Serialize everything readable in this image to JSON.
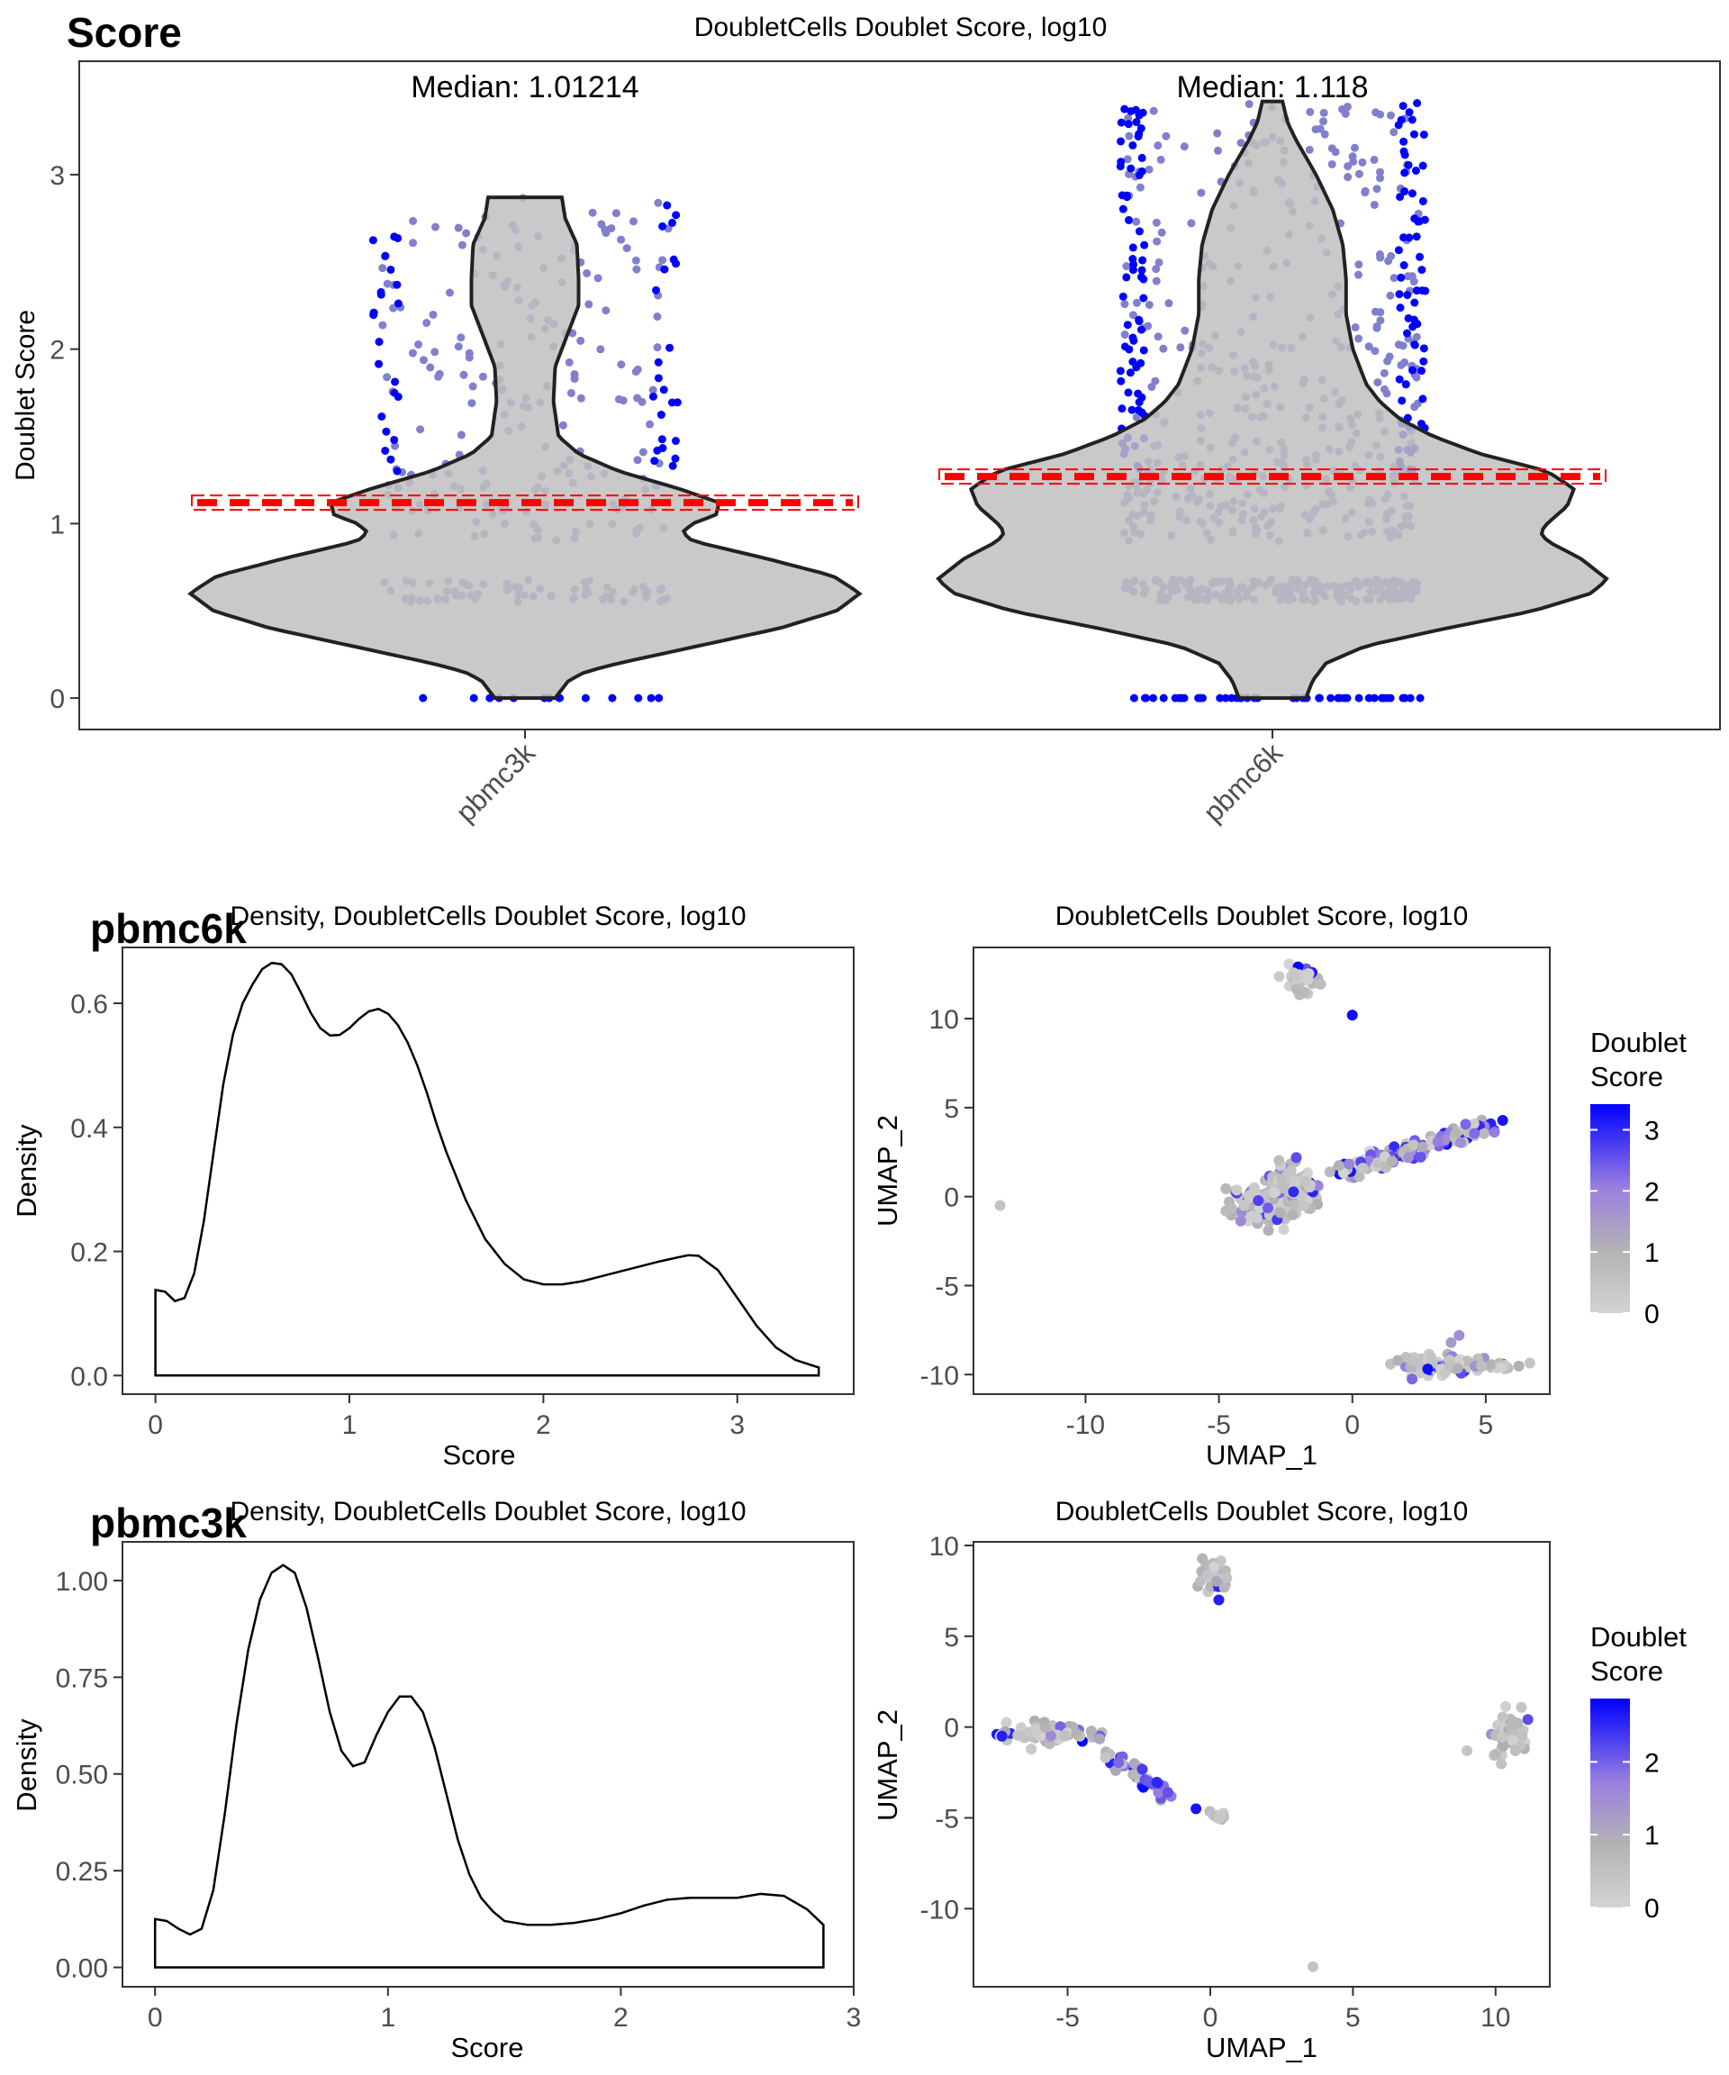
{
  "figure": {
    "colors": {
      "low": "#BEBEBE",
      "high": "#0000FF",
      "jitter": "#8080CC",
      "outlier": "#0000FF",
      "violin_fill": "#C0C0C0",
      "median_line": "#FF0000"
    }
  },
  "chart_data": [
    {
      "id": "violin",
      "type": "violin",
      "tag": "Score",
      "title": "DoubletCells Doublet Score, log10",
      "xlabel": "",
      "ylabel": "Doublet Score",
      "ylim": [
        -0.18,
        3.65
      ],
      "yticks": [
        0,
        1,
        2,
        3
      ],
      "yticklabels": [
        "0",
        "1",
        "2",
        "3"
      ],
      "categories": [
        "pbmc3k",
        "pbmc6k"
      ],
      "medians": [
        1.01214,
        1.118
      ],
      "median_labels": [
        "Median: 1.01214",
        "Median: 1.118"
      ],
      "threshold_lines": [
        1.12,
        1.27
      ],
      "violins": [
        {
          "name": "pbmc3k",
          "profile": [
            [
              0.0,
              0.09
            ],
            [
              0.05,
              0.11
            ],
            [
              0.1,
              0.13
            ],
            [
              0.15,
              0.18
            ],
            [
              0.2,
              0.28
            ],
            [
              0.3,
              0.52
            ],
            [
              0.4,
              0.76
            ],
            [
              0.5,
              0.93
            ],
            [
              0.6,
              1.0
            ],
            [
              0.7,
              0.92
            ],
            [
              0.8,
              0.72
            ],
            [
              0.9,
              0.5
            ],
            [
              0.95,
              0.47
            ],
            [
              1.0,
              0.5
            ],
            [
              1.05,
              0.57
            ],
            [
              1.12,
              0.58
            ],
            [
              1.2,
              0.46
            ],
            [
              1.3,
              0.28
            ],
            [
              1.4,
              0.16
            ],
            [
              1.5,
              0.1
            ],
            [
              1.7,
              0.085
            ],
            [
              1.9,
              0.09
            ],
            [
              2.1,
              0.13
            ],
            [
              2.25,
              0.16
            ],
            [
              2.4,
              0.16
            ],
            [
              2.6,
              0.155
            ],
            [
              2.75,
              0.12
            ],
            [
              2.87,
              0.11
            ]
          ],
          "ymax": 2.87
        },
        {
          "name": "pbmc6k",
          "profile": [
            [
              0.0,
              0.1
            ],
            [
              0.1,
              0.12
            ],
            [
              0.2,
              0.16
            ],
            [
              0.3,
              0.28
            ],
            [
              0.4,
              0.52
            ],
            [
              0.5,
              0.78
            ],
            [
              0.6,
              0.95
            ],
            [
              0.68,
              1.0
            ],
            [
              0.8,
              0.92
            ],
            [
              0.9,
              0.82
            ],
            [
              0.95,
              0.8
            ],
            [
              1.0,
              0.82
            ],
            [
              1.1,
              0.88
            ],
            [
              1.2,
              0.9
            ],
            [
              1.3,
              0.82
            ],
            [
              1.4,
              0.62
            ],
            [
              1.5,
              0.48
            ],
            [
              1.6,
              0.38
            ],
            [
              1.7,
              0.32
            ],
            [
              1.8,
              0.28
            ],
            [
              2.0,
              0.24
            ],
            [
              2.2,
              0.22
            ],
            [
              2.4,
              0.22
            ],
            [
              2.6,
              0.21
            ],
            [
              2.8,
              0.18
            ],
            [
              3.0,
              0.13
            ],
            [
              3.2,
              0.07
            ],
            [
              3.3,
              0.045
            ],
            [
              3.42,
              0.03
            ]
          ],
          "ymax": 3.42
        }
      ]
    },
    {
      "id": "density_pbmc6k",
      "type": "area",
      "tag": "pbmc6k",
      "title": "Density, DoubletCells Doublet Score, log10",
      "xlabel": "Score",
      "ylabel": "Density",
      "xlim": [
        -0.17,
        3.6
      ],
      "ylim": [
        -0.03,
        0.69
      ],
      "xticks": [
        0,
        1,
        2,
        3
      ],
      "xticklabels": [
        "0",
        "1",
        "2",
        "3"
      ],
      "yticks": [
        0,
        0.2,
        0.4,
        0.6
      ],
      "yticklabels": [
        "0.0",
        "0.2",
        "0.4",
        "0.6"
      ],
      "x": [
        0.0,
        0.05,
        0.1,
        0.15,
        0.2,
        0.25,
        0.3,
        0.35,
        0.4,
        0.45,
        0.5,
        0.55,
        0.6,
        0.65,
        0.7,
        0.75,
        0.8,
        0.85,
        0.9,
        0.95,
        1.0,
        1.05,
        1.1,
        1.15,
        1.2,
        1.25,
        1.3,
        1.35,
        1.4,
        1.45,
        1.5,
        1.6,
        1.7,
        1.8,
        1.9,
        2.0,
        2.1,
        2.2,
        2.3,
        2.4,
        2.5,
        2.6,
        2.7,
        2.75,
        2.8,
        2.9,
        3.0,
        3.1,
        3.2,
        3.3,
        3.42
      ],
      "y": [
        0.138,
        0.135,
        0.12,
        0.125,
        0.165,
        0.25,
        0.36,
        0.47,
        0.55,
        0.6,
        0.63,
        0.655,
        0.665,
        0.663,
        0.647,
        0.617,
        0.585,
        0.56,
        0.548,
        0.549,
        0.56,
        0.575,
        0.587,
        0.591,
        0.583,
        0.565,
        0.537,
        0.5,
        0.455,
        0.405,
        0.36,
        0.283,
        0.22,
        0.18,
        0.155,
        0.147,
        0.147,
        0.152,
        0.16,
        0.168,
        0.176,
        0.184,
        0.191,
        0.194,
        0.193,
        0.17,
        0.125,
        0.08,
        0.045,
        0.025,
        0.013
      ]
    },
    {
      "id": "umap_pbmc6k",
      "type": "scatter",
      "title": "DoubletCells Doublet Score, log10",
      "xlabel": "UMAP_1",
      "ylabel": "UMAP_2",
      "xlim": [
        -14.2,
        7.4
      ],
      "ylim": [
        -11.1,
        14.0
      ],
      "xticks": [
        -10,
        -5,
        0,
        5
      ],
      "xticklabels": [
        "-10",
        "-5",
        "0",
        "5"
      ],
      "yticks": [
        -10,
        -5,
        0,
        5,
        10
      ],
      "yticklabels": [
        "-10",
        "-5",
        "0",
        "5",
        "10"
      ],
      "legend_title": "Doublet Score",
      "legend_title_lines": [
        "Doublet",
        "Score"
      ],
      "legend_placement": "right",
      "color_range": [
        0,
        3.42
      ],
      "legend_ticks": [
        0,
        1,
        2,
        3
      ],
      "legend_ticklabels": [
        "0",
        "1",
        "2",
        "3"
      ],
      "clusters": [
        {
          "cx": -3.3,
          "cy": -0.4,
          "sx": 0.55,
          "sy": 0.5,
          "n": 160
        },
        {
          "cx": -2.2,
          "cy": 0.4,
          "sx": 0.45,
          "sy": 0.6,
          "n": 110
        },
        {
          "cx": -2.0,
          "cy": 12.4,
          "sx": 0.3,
          "sy": 0.4,
          "n": 40
        },
        {
          "cx": 3.3,
          "cy": -9.5,
          "sx": 0.9,
          "sy": 0.25,
          "n": 110
        },
        {
          "cx": 5.6,
          "cy": -9.5,
          "sx": 0.5,
          "sy": 0.12,
          "n": 20
        }
      ],
      "strips": [
        {
          "x0": -0.6,
          "y0": 1.3,
          "x1": 5.2,
          "y1": 3.9,
          "w": 0.25,
          "n": 140
        }
      ],
      "points": [
        {
          "x": -13.2,
          "y": -0.5,
          "v": 0.5
        },
        {
          "x": 0.0,
          "y": 10.2,
          "v": 3.3
        },
        {
          "x": 4.0,
          "y": -7.8,
          "v": 1.8
        },
        {
          "x": 3.7,
          "y": -8.2,
          "v": 1.5
        },
        {
          "x": -1.8,
          "y": 11.5,
          "v": 0.8
        },
        {
          "x": -2.1,
          "y": 2.2,
          "v": 2.6
        }
      ]
    },
    {
      "id": "density_pbmc3k",
      "type": "area",
      "tag": "pbmc3k",
      "title": "Density, DoubletCells Doublet Score, log10",
      "xlabel": "Score",
      "ylabel": "Density",
      "xlim": [
        -0.14,
        3.0
      ],
      "ylim": [
        -0.05,
        1.1
      ],
      "xticks": [
        0,
        1,
        2,
        3
      ],
      "xticklabels": [
        "0",
        "1",
        "2",
        "3"
      ],
      "yticks": [
        0,
        0.25,
        0.5,
        0.75,
        1.0
      ],
      "yticklabels": [
        "0.00",
        "0.25",
        "0.50",
        "0.75",
        "1.00"
      ],
      "x": [
        0.0,
        0.05,
        0.1,
        0.15,
        0.2,
        0.25,
        0.3,
        0.35,
        0.4,
        0.45,
        0.5,
        0.55,
        0.6,
        0.65,
        0.7,
        0.75,
        0.8,
        0.85,
        0.9,
        0.95,
        1.0,
        1.05,
        1.1,
        1.15,
        1.2,
        1.25,
        1.3,
        1.35,
        1.4,
        1.45,
        1.5,
        1.6,
        1.7,
        1.8,
        1.9,
        2.0,
        2.1,
        2.2,
        2.3,
        2.4,
        2.5,
        2.6,
        2.7,
        2.8,
        2.87
      ],
      "y": [
        0.125,
        0.12,
        0.1,
        0.085,
        0.1,
        0.2,
        0.4,
        0.63,
        0.82,
        0.95,
        1.02,
        1.04,
        1.02,
        0.93,
        0.8,
        0.66,
        0.56,
        0.52,
        0.53,
        0.6,
        0.66,
        0.7,
        0.7,
        0.66,
        0.57,
        0.45,
        0.33,
        0.24,
        0.18,
        0.145,
        0.12,
        0.11,
        0.11,
        0.115,
        0.125,
        0.14,
        0.16,
        0.175,
        0.18,
        0.18,
        0.18,
        0.19,
        0.185,
        0.15,
        0.11
      ]
    },
    {
      "id": "umap_pbmc3k",
      "type": "scatter",
      "title": "DoubletCells Doublet Score, log10",
      "xlabel": "UMAP_1",
      "ylabel": "UMAP_2",
      "xlim": [
        -8.3,
        11.9
      ],
      "ylim": [
        -14.3,
        10.2
      ],
      "xticks": [
        -5,
        0,
        5,
        10
      ],
      "xticklabels": [
        "-5",
        "0",
        "5",
        "10"
      ],
      "yticks": [
        -10,
        -5,
        0,
        5,
        10
      ],
      "yticklabels": [
        "-10",
        "-5",
        "0",
        "5",
        "10"
      ],
      "legend_title": "Doublet Score",
      "legend_title_lines": [
        "Doublet",
        "Score"
      ],
      "legend_placement": "right",
      "color_range": [
        0,
        2.87
      ],
      "legend_ticks": [
        0,
        1,
        2
      ],
      "legend_ticklabels": [
        "0",
        "1",
        "2"
      ],
      "clusters": [
        {
          "cx": 0.2,
          "cy": 8.3,
          "sx": 0.25,
          "sy": 0.5,
          "n": 35
        },
        {
          "cx": 0.3,
          "cy": -4.9,
          "sx": 0.15,
          "sy": 0.12,
          "n": 10
        },
        {
          "cx": 10.5,
          "cy": -0.3,
          "sx": 0.3,
          "sy": 0.8,
          "n": 45
        },
        {
          "cx": -5.6,
          "cy": -0.4,
          "sx": 1.1,
          "sy": 0.3,
          "n": 60
        }
      ],
      "strips": [
        {
          "x0": -3.8,
          "y0": -1.4,
          "x1": -1.5,
          "y1": -3.7,
          "w": 0.2,
          "n": 45
        }
      ],
      "points": [
        {
          "x": -7.3,
          "y": -0.5,
          "v": 2.6
        },
        {
          "x": 9.0,
          "y": -1.3,
          "v": 0.4
        },
        {
          "x": 3.6,
          "y": -13.2,
          "v": 0.4
        },
        {
          "x": -0.5,
          "y": -4.5,
          "v": 2.7
        },
        {
          "x": 0.3,
          "y": 7.0,
          "v": 2.6
        }
      ]
    }
  ]
}
